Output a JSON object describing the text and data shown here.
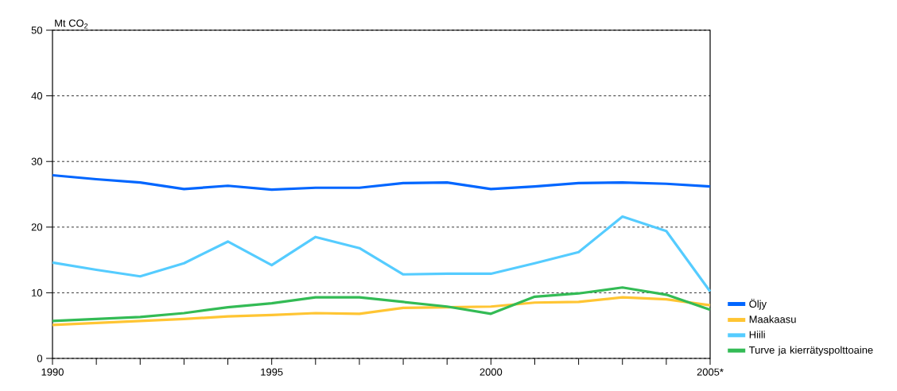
{
  "chart_data": {
    "type": "line",
    "ylabel": "Mt CO$_{2}$",
    "x": [
      1990,
      1991,
      1992,
      1993,
      1994,
      1995,
      1996,
      1997,
      1998,
      1999,
      2000,
      2001,
      2002,
      2003,
      2004,
      2005
    ],
    "series": [
      {
        "name": "Öljy",
        "color": "#0066ff",
        "values": [
          27.9,
          27.3,
          26.8,
          25.8,
          26.3,
          25.7,
          26.0,
          26.0,
          26.7,
          26.8,
          25.8,
          26.2,
          26.7,
          26.8,
          26.6,
          26.2
        ]
      },
      {
        "name": "Maakaasu",
        "color": "#ffc533",
        "values": [
          5.1,
          5.4,
          5.7,
          6.0,
          6.4,
          6.6,
          6.9,
          6.8,
          7.7,
          7.8,
          7.9,
          8.5,
          8.6,
          9.3,
          9.0,
          8.1
        ]
      },
      {
        "name": "Hiili",
        "color": "#55ccff",
        "values": [
          14.6,
          13.5,
          12.5,
          14.5,
          17.8,
          14.2,
          18.5,
          16.8,
          12.8,
          12.9,
          12.9,
          14.5,
          16.2,
          21.6,
          19.4,
          10.2
        ]
      },
      {
        "name": "Turve ja kierrätyspolttoaine",
        "color": "#33bb55",
        "values": [
          5.7,
          6.0,
          6.3,
          6.9,
          7.8,
          8.4,
          9.3,
          9.3,
          8.6,
          7.9,
          6.8,
          9.4,
          9.9,
          10.8,
          9.7,
          7.4
        ]
      }
    ],
    "xlim": [
      1990,
      2005
    ],
    "xticks": [
      {
        "value": 1990,
        "label": "1990"
      },
      {
        "value": 1991,
        "label": null
      },
      {
        "value": 1992,
        "label": null
      },
      {
        "value": 1993,
        "label": null
      },
      {
        "value": 1994,
        "label": null
      },
      {
        "value": 1995,
        "label": "1995"
      },
      {
        "value": 1996,
        "label": null
      },
      {
        "value": 1997,
        "label": null
      },
      {
        "value": 1998,
        "label": null
      },
      {
        "value": 1999,
        "label": null
      },
      {
        "value": 2000,
        "label": "2000"
      },
      {
        "value": 2001,
        "label": null
      },
      {
        "value": 2002,
        "label": null
      },
      {
        "value": 2003,
        "label": null
      },
      {
        "value": 2004,
        "label": null
      },
      {
        "value": 2005,
        "label": "2005*"
      }
    ],
    "ylim": [
      0,
      50
    ],
    "yticks": [
      0,
      10,
      20,
      30,
      40,
      50
    ],
    "grid": "y",
    "legend": "right",
    "marker": "none",
    "line_style": "solid"
  }
}
